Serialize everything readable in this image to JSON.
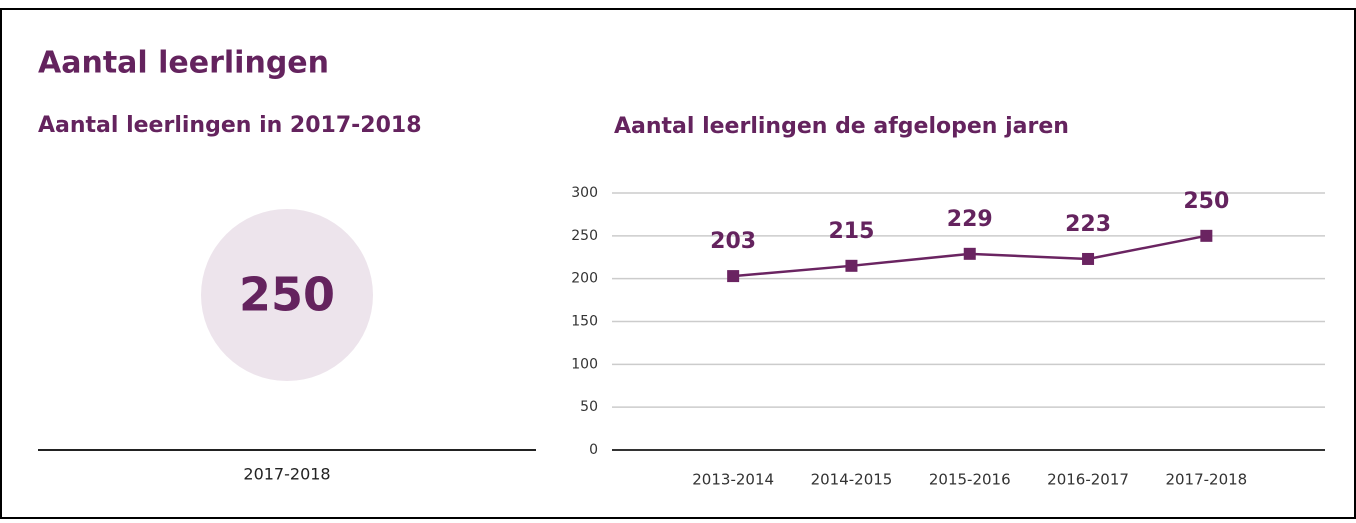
{
  "title": "Aantal leerlingen",
  "current": {
    "title": "Aantal leerlingen in 2017-2018",
    "value": 250,
    "label": "2017-2018"
  },
  "chart_data": {
    "type": "line",
    "title": "Aantal leerlingen de afgelopen jaren",
    "categories": [
      "2013-2014",
      "2014-2015",
      "2015-2016",
      "2016-2017",
      "2017-2018"
    ],
    "values": [
      203,
      215,
      229,
      223,
      250
    ],
    "color": "#6a2461",
    "ylim": [
      0,
      300
    ],
    "yticks": [
      0,
      50,
      100,
      150,
      200,
      250,
      300
    ],
    "grid": true
  }
}
